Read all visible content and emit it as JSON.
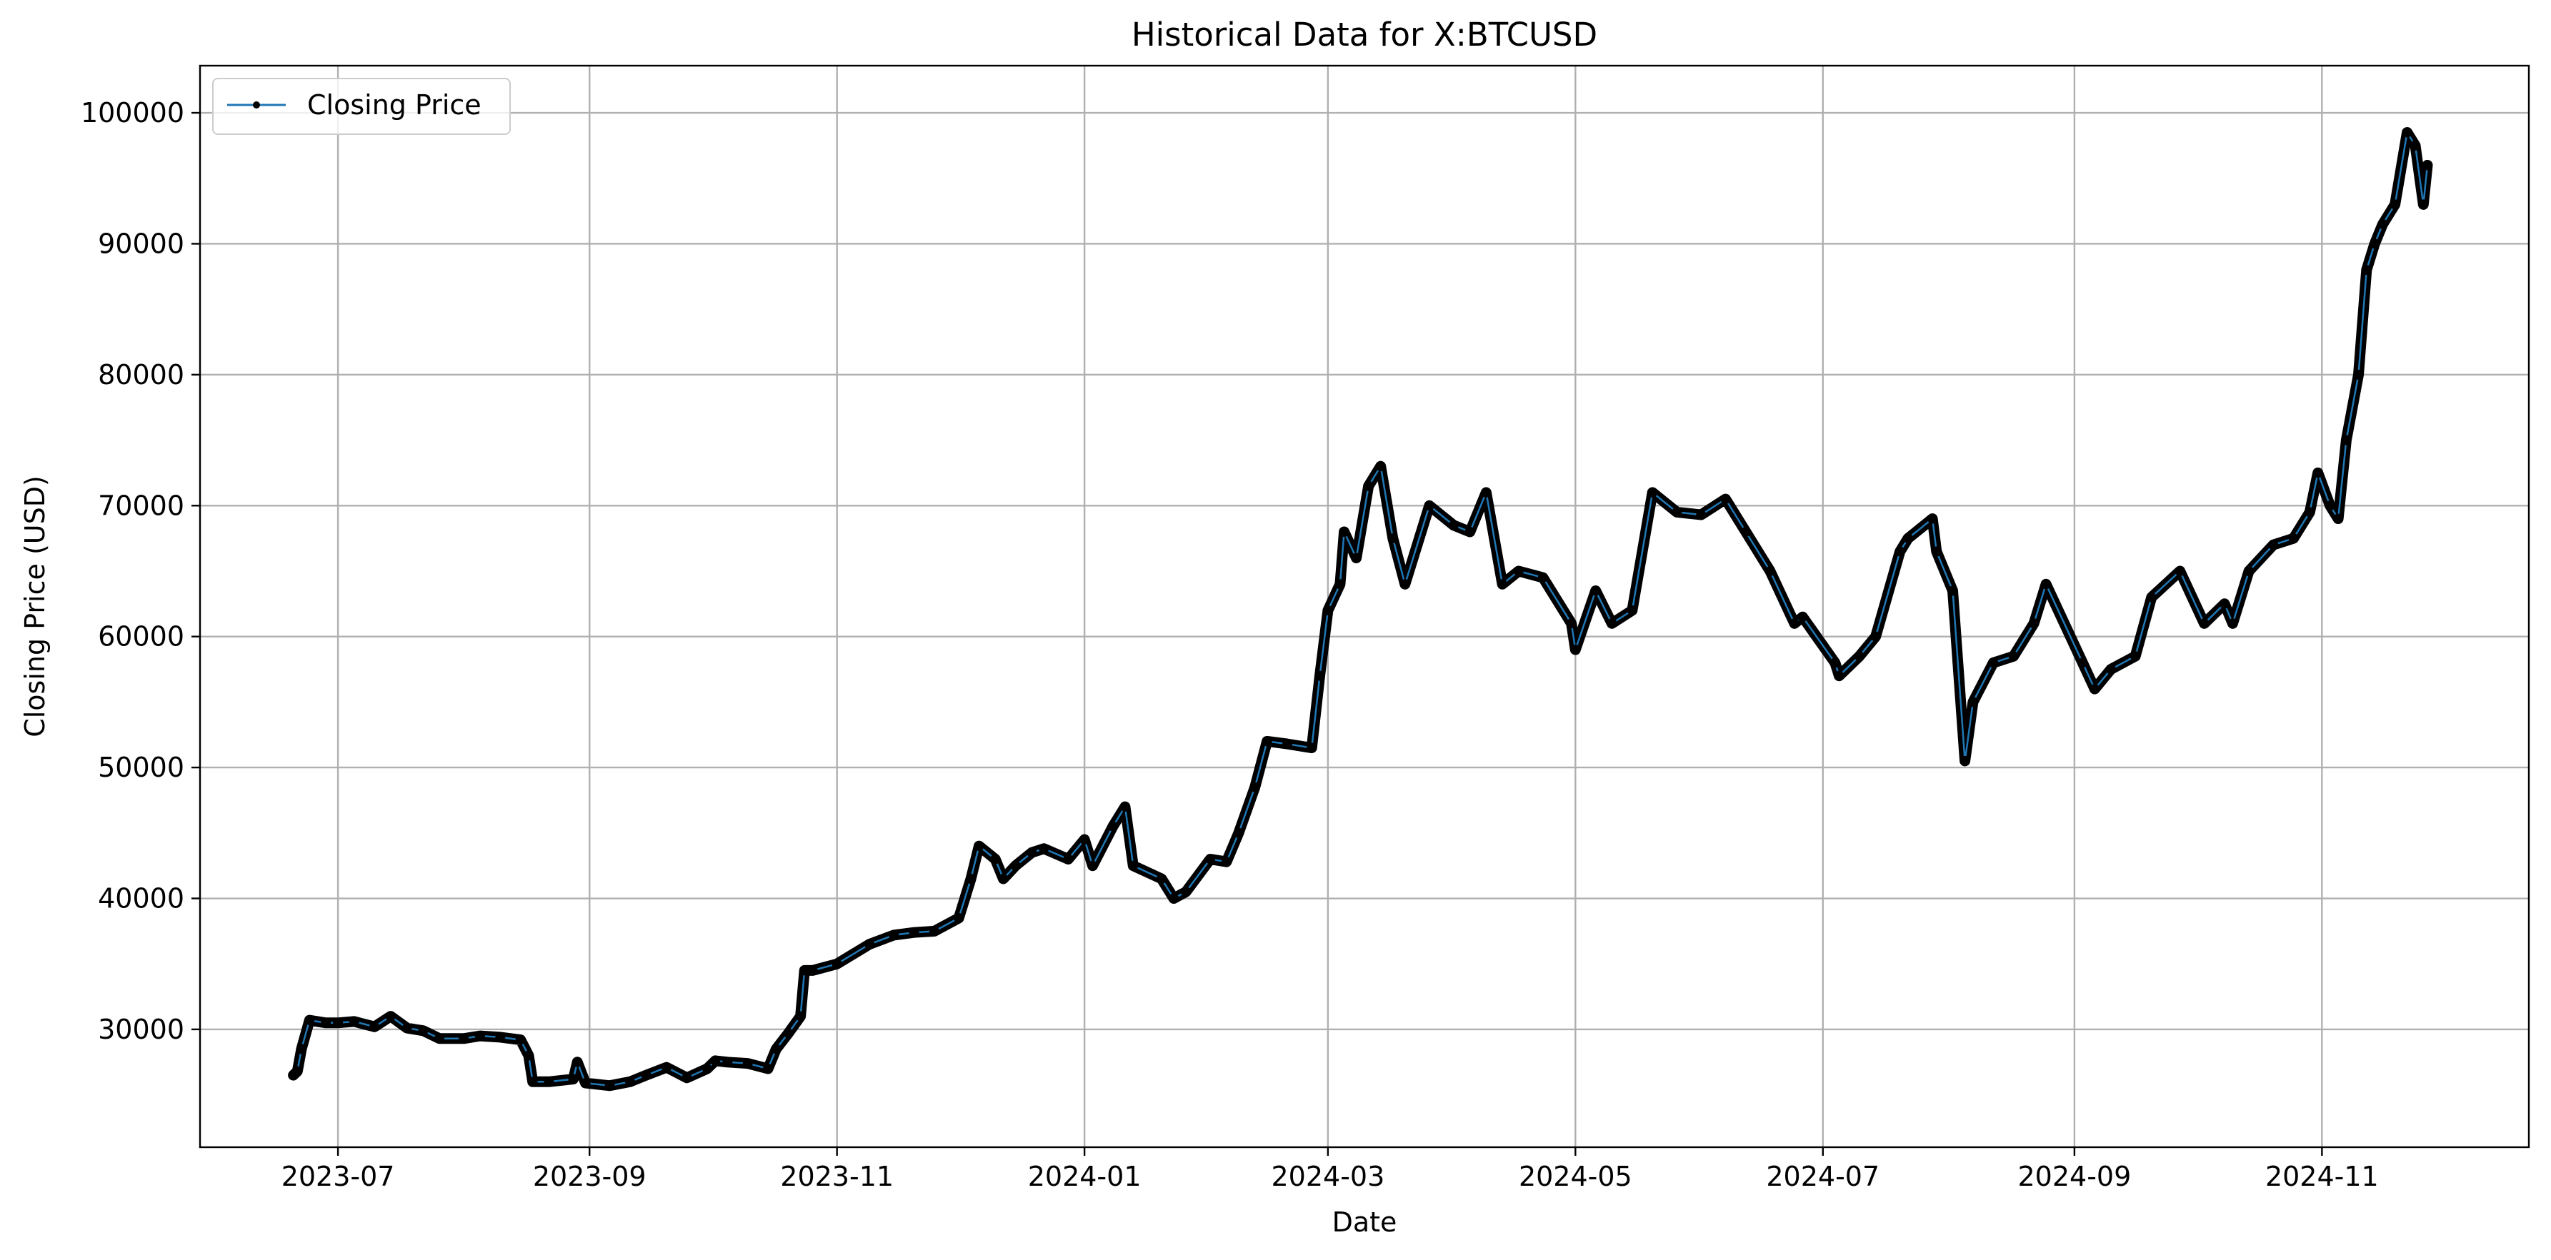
{
  "chart_data": {
    "type": "line",
    "title": "Historical Data for X:BTCUSD",
    "xlabel": "Date",
    "ylabel": "Closing Price (USD)",
    "grid": true,
    "legend": {
      "placement": "top-left",
      "entries": [
        "Closing Price"
      ]
    },
    "series_color": "#1f77b4",
    "marker_color": "#000000",
    "x_tick_labels": [
      "2023-07",
      "2023-09",
      "2023-11",
      "2024-01",
      "2024-03",
      "2024-05",
      "2024-07",
      "2024-09",
      "2024-11"
    ],
    "x_ticks": [
      "2023-07-01",
      "2023-09-01",
      "2023-11-01",
      "2024-01-01",
      "2024-03-01",
      "2024-05-01",
      "2024-07-01",
      "2024-09-01",
      "2024-11-01"
    ],
    "xlim": [
      "2023-05-28",
      "2024-12-22"
    ],
    "y_ticks": [
      30000,
      40000,
      50000,
      60000,
      70000,
      80000,
      90000,
      100000
    ],
    "y_tick_labels": [
      "30000",
      "40000",
      "50000",
      "60000",
      "70000",
      "80000",
      "90000",
      "100000"
    ],
    "ylim": [
      21000,
      103600
    ],
    "series": [
      {
        "name": "Closing Price",
        "x": [
          "2023-06-20",
          "2023-06-21",
          "2023-06-22",
          "2023-06-24",
          "2023-06-28",
          "2023-07-01",
          "2023-07-05",
          "2023-07-10",
          "2023-07-14",
          "2023-07-18",
          "2023-07-22",
          "2023-07-26",
          "2023-08-01",
          "2023-08-05",
          "2023-08-10",
          "2023-08-15",
          "2023-08-17",
          "2023-08-18",
          "2023-08-22",
          "2023-08-28",
          "2023-08-29",
          "2023-08-31",
          "2023-09-06",
          "2023-09-11",
          "2023-09-15",
          "2023-09-20",
          "2023-09-25",
          "2023-09-30",
          "2023-10-02",
          "2023-10-05",
          "2023-10-10",
          "2023-10-15",
          "2023-10-17",
          "2023-10-20",
          "2023-10-23",
          "2023-10-24",
          "2023-10-26",
          "2023-11-01",
          "2023-11-09",
          "2023-11-15",
          "2023-11-20",
          "2023-11-25",
          "2023-12-01",
          "2023-12-04",
          "2023-12-06",
          "2023-12-10",
          "2023-12-12",
          "2023-12-15",
          "2023-12-19",
          "2023-12-22",
          "2023-12-28",
          "2024-01-01",
          "2024-01-03",
          "2024-01-08",
          "2024-01-11",
          "2024-01-13",
          "2024-01-20",
          "2024-01-23",
          "2024-01-26",
          "2024-02-01",
          "2024-02-05",
          "2024-02-08",
          "2024-02-12",
          "2024-02-15",
          "2024-02-20",
          "2024-02-26",
          "2024-02-28",
          "2024-03-01",
          "2024-03-04",
          "2024-03-05",
          "2024-03-08",
          "2024-03-11",
          "2024-03-14",
          "2024-03-17",
          "2024-03-20",
          "2024-03-26",
          "2024-04-01",
          "2024-04-05",
          "2024-04-09",
          "2024-04-13",
          "2024-04-17",
          "2024-04-23",
          "2024-04-30",
          "2024-05-01",
          "2024-05-06",
          "2024-05-10",
          "2024-05-15",
          "2024-05-20",
          "2024-05-26",
          "2024-06-01",
          "2024-06-07",
          "2024-06-12",
          "2024-06-18",
          "2024-06-24",
          "2024-06-26",
          "2024-07-04",
          "2024-07-05",
          "2024-07-10",
          "2024-07-14",
          "2024-07-20",
          "2024-07-22",
          "2024-07-28",
          "2024-07-29",
          "2024-08-02",
          "2024-08-05",
          "2024-08-07",
          "2024-08-12",
          "2024-08-17",
          "2024-08-22",
          "2024-08-25",
          "2024-09-03",
          "2024-09-06",
          "2024-09-10",
          "2024-09-16",
          "2024-09-20",
          "2024-09-27",
          "2024-10-03",
          "2024-10-08",
          "2024-10-10",
          "2024-10-14",
          "2024-10-20",
          "2024-10-25",
          "2024-10-29",
          "2024-10-31",
          "2024-11-03",
          "2024-11-05",
          "2024-11-07",
          "2024-11-10",
          "2024-11-12",
          "2024-11-14",
          "2024-11-16",
          "2024-11-19",
          "2024-11-22",
          "2024-11-24",
          "2024-11-26",
          "2024-11-27"
        ],
        "values": [
          26500,
          26800,
          28500,
          30700,
          30500,
          30500,
          30600,
          30200,
          31000,
          30100,
          29900,
          29300,
          29300,
          29500,
          29400,
          29200,
          28000,
          26000,
          26000,
          26200,
          27500,
          25900,
          25700,
          26000,
          26500,
          27100,
          26300,
          27000,
          27600,
          27500,
          27400,
          27000,
          28500,
          29700,
          31000,
          34500,
          34500,
          35000,
          36500,
          37200,
          37400,
          37500,
          38500,
          41500,
          44000,
          43000,
          41500,
          42500,
          43500,
          43800,
          43000,
          44500,
          42500,
          45500,
          47000,
          42500,
          41500,
          40000,
          40500,
          43000,
          42800,
          45000,
          48500,
          52000,
          51800,
          51500,
          57000,
          62000,
          64000,
          68000,
          66000,
          71500,
          73000,
          67500,
          64000,
          70000,
          68500,
          68000,
          71000,
          64000,
          65000,
          64500,
          61000,
          59000,
          63500,
          61000,
          62000,
          71000,
          69500,
          69300,
          70500,
          68000,
          65000,
          61000,
          61500,
          58000,
          57000,
          58500,
          60000,
          66500,
          67500,
          69000,
          66500,
          63500,
          50500,
          55000,
          58000,
          58500,
          61000,
          64000,
          58000,
          56000,
          57500,
          58500,
          63000,
          65000,
          61000,
          62500,
          61000,
          65000,
          67000,
          67500,
          69500,
          72500,
          70000,
          69000,
          75000,
          80000,
          88000,
          90000,
          91500,
          93000,
          98500,
          97500,
          93000,
          96000
        ]
      }
    ]
  }
}
